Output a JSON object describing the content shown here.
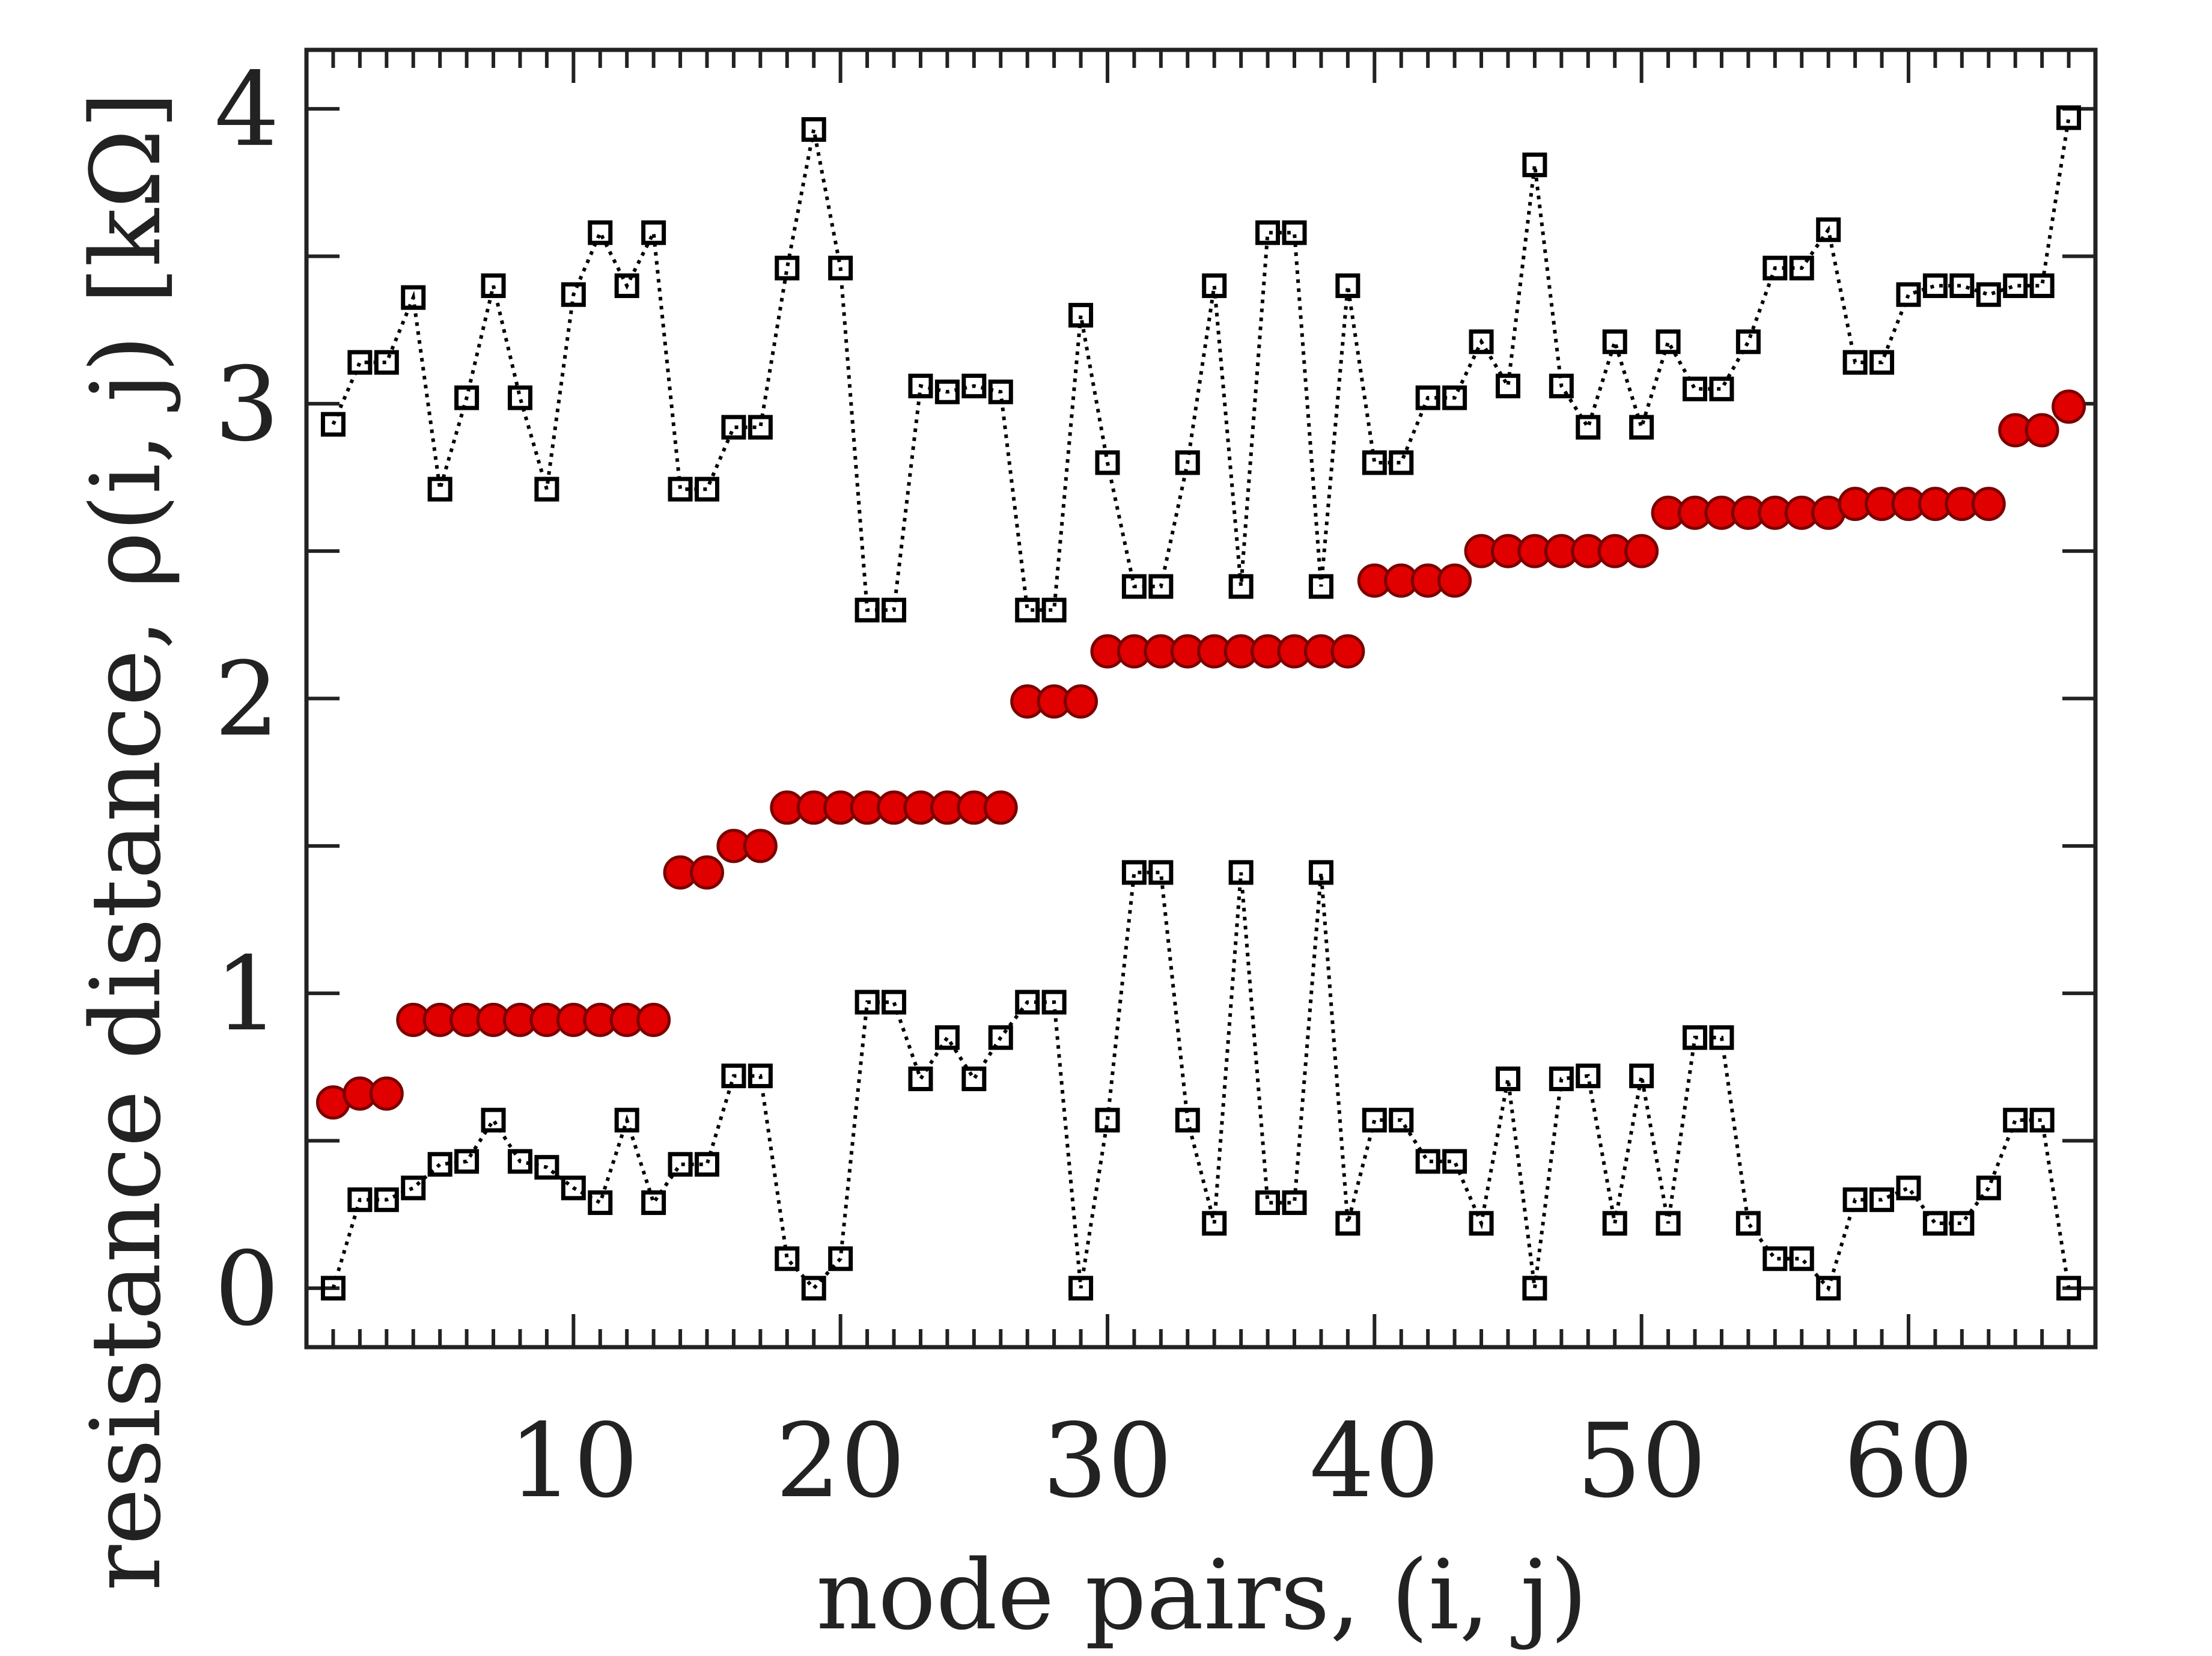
{
  "chart_data": {
    "type": "line",
    "xlabel": "node pairs, (i, j)",
    "ylabel": "resistance distance, ρ(i, j) [kΩ]",
    "x": [
      1,
      2,
      3,
      4,
      5,
      6,
      7,
      8,
      9,
      10,
      11,
      12,
      13,
      14,
      15,
      16,
      17,
      18,
      19,
      20,
      21,
      22,
      23,
      24,
      25,
      26,
      27,
      28,
      29,
      30,
      31,
      32,
      33,
      34,
      35,
      36,
      37,
      38,
      39,
      40,
      41,
      42,
      43,
      44,
      45,
      46,
      47,
      48,
      49,
      50,
      51,
      52,
      53,
      54,
      55,
      56,
      57,
      58,
      59,
      60,
      61,
      62,
      63,
      64,
      65,
      66
    ],
    "series": [
      {
        "color": "#000000",
        "marker": "square",
        "linestyle": "dotted",
        "values": [
          2.93,
          3.14,
          3.14,
          3.36,
          2.71,
          3.02,
          3.4,
          3.02,
          2.71,
          3.37,
          3.58,
          3.4,
          3.58,
          2.71,
          2.71,
          2.92,
          2.92,
          3.46,
          3.93,
          3.46,
          2.3,
          2.3,
          3.06,
          3.04,
          3.06,
          3.04,
          2.3,
          2.3,
          3.3,
          2.8,
          2.38,
          2.38,
          2.8,
          3.4,
          2.38,
          3.58,
          3.58,
          2.38,
          3.4,
          2.8,
          2.8,
          3.02,
          3.02,
          3.21,
          3.06,
          3.81,
          3.06,
          2.92,
          3.21,
          2.92,
          3.21,
          3.05,
          3.05,
          3.21,
          3.46,
          3.46,
          3.59,
          3.14,
          3.14,
          3.37,
          3.4,
          3.4,
          3.37,
          3.4,
          3.4,
          3.97
        ]
      },
      {
        "color": "#000000",
        "marker": "square",
        "linestyle": "dotted",
        "values": [
          0,
          0.3,
          0.3,
          0.34,
          0.42,
          0.43,
          0.57,
          0.43,
          0.41,
          0.34,
          0.29,
          0.57,
          0.29,
          0.42,
          0.42,
          0.72,
          0.72,
          0.1,
          0,
          0.1,
          0.97,
          0.97,
          0.71,
          0.85,
          0.71,
          0.85,
          0.97,
          0.97,
          0,
          0.57,
          1.41,
          1.41,
          0.57,
          0.22,
          1.41,
          0.29,
          0.29,
          1.41,
          0.22,
          0.57,
          0.57,
          0.43,
          0.43,
          0.22,
          0.71,
          0,
          0.71,
          0.72,
          0.22,
          0.72,
          0.22,
          0.85,
          0.85,
          0.22,
          0.1,
          0.1,
          0,
          0.3,
          0.3,
          0.34,
          0.22,
          0.22,
          0.34,
          0.57,
          0.57,
          0
        ]
      },
      {
        "color": "#e00000",
        "marker": "circle",
        "linestyle": "none",
        "values": [
          0.63,
          0.66,
          0.66,
          0.91,
          0.91,
          0.91,
          0.91,
          0.91,
          0.91,
          0.91,
          0.91,
          0.91,
          0.91,
          1.41,
          1.41,
          1.5,
          1.5,
          1.63,
          1.63,
          1.63,
          1.63,
          1.63,
          1.63,
          1.63,
          1.63,
          1.63,
          1.99,
          1.99,
          1.99,
          2.16,
          2.16,
          2.16,
          2.16,
          2.16,
          2.16,
          2.16,
          2.16,
          2.16,
          2.16,
          2.4,
          2.4,
          2.4,
          2.4,
          2.5,
          2.5,
          2.5,
          2.5,
          2.5,
          2.5,
          2.5,
          2.63,
          2.63,
          2.63,
          2.63,
          2.63,
          2.63,
          2.63,
          2.66,
          2.66,
          2.66,
          2.66,
          2.66,
          2.66,
          2.91,
          2.91,
          2.99
        ]
      }
    ],
    "xlim": [
      0,
      67
    ],
    "ylim": [
      -0.2,
      4.2
    ],
    "xticks": [
      10,
      20,
      30,
      40,
      50,
      60
    ],
    "xticks_minor": [
      1,
      2,
      3,
      4,
      5,
      6,
      7,
      8,
      9,
      11,
      12,
      13,
      14,
      15,
      16,
      17,
      18,
      19,
      21,
      22,
      23,
      24,
      25,
      26,
      27,
      28,
      29,
      31,
      32,
      33,
      34,
      35,
      36,
      37,
      38,
      39,
      41,
      42,
      43,
      44,
      45,
      46,
      47,
      48,
      49,
      51,
      52,
      53,
      54,
      55,
      56,
      57,
      58,
      59,
      61,
      62,
      63,
      64,
      65,
      66
    ],
    "yticks": [
      0,
      1,
      2,
      3,
      4
    ],
    "yticks_minor": [
      0.5,
      1.5,
      2.5,
      3.5
    ],
    "grid": false
  }
}
